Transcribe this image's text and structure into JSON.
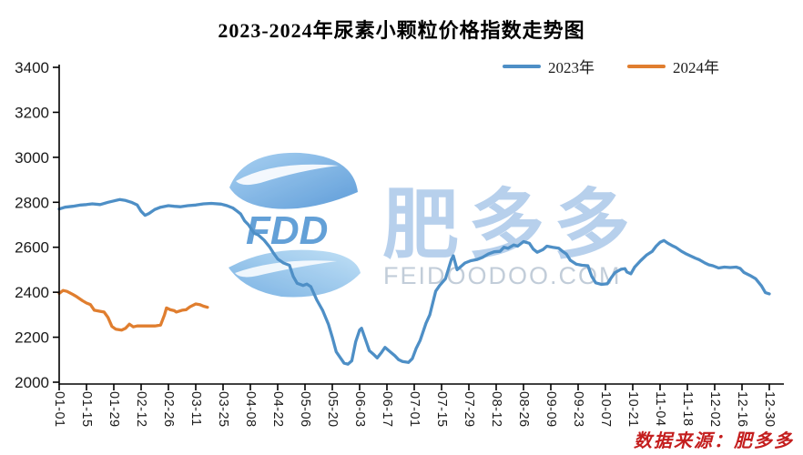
{
  "title": "2023-2024年尿素小颗粒价格指数走势图",
  "legend": [
    {
      "label": "2023年",
      "color": "#4e8fc6"
    },
    {
      "label": "2024年",
      "color": "#e07e2f"
    }
  ],
  "source_note": "数据来源：肥多多",
  "watermark": {
    "logo_text": "FDD",
    "brand_text": "肥多多",
    "domain_text": "FEIDOODOO.COM",
    "leaf_color_light": "#9dcbf0",
    "leaf_color_dark": "#4a90d4",
    "logo_text_color": "#5b9bd5",
    "brand_text_color": "#abc8e9",
    "domain_text_color": "#c2cdd9"
  },
  "colors": {
    "axis": "#000000",
    "tick_label": "#1a1a1a",
    "background": "#ffffff",
    "series_2023": "#4e8fc6",
    "series_2024": "#e07e2f",
    "source_note": "#c41e1e"
  },
  "chart_data": {
    "type": "line",
    "title": "2023-2024年尿素小颗粒价格指数走势图",
    "xlabel": "",
    "ylabel": "",
    "grid": false,
    "legend_position": "top-right",
    "ylim": [
      2000,
      3400
    ],
    "y_ticks": [
      2000,
      2200,
      2400,
      2600,
      2800,
      3000,
      3200,
      3400
    ],
    "x_tick_labels": [
      "01-01",
      "01-15",
      "01-29",
      "02-12",
      "02-26",
      "03-11",
      "03-25",
      "04-08",
      "04-22",
      "05-06",
      "05-20",
      "06-03",
      "06-17",
      "07-01",
      "07-15",
      "07-29",
      "08-12",
      "08-26",
      "09-09",
      "09-23",
      "10-07",
      "10-21",
      "11-04",
      "11-18",
      "12-02",
      "12-16",
      "12-30"
    ],
    "series": [
      {
        "name": "2023年",
        "color": "#4e8fc6",
        "points": [
          [
            "01-01",
            2770
          ],
          [
            "01-04",
            2778
          ],
          [
            "01-08",
            2782
          ],
          [
            "01-12",
            2788
          ],
          [
            "01-15",
            2790
          ],
          [
            "01-18",
            2793
          ],
          [
            "01-22",
            2790
          ],
          [
            "01-26",
            2800
          ],
          [
            "01-29",
            2806
          ],
          [
            "02-01",
            2812
          ],
          [
            "02-04",
            2808
          ],
          [
            "02-07",
            2800
          ],
          [
            "02-10",
            2788
          ],
          [
            "02-12",
            2760
          ],
          [
            "02-14",
            2742
          ],
          [
            "02-16",
            2750
          ],
          [
            "02-19",
            2768
          ],
          [
            "02-22",
            2778
          ],
          [
            "02-26",
            2785
          ],
          [
            "03-01",
            2782
          ],
          [
            "03-04",
            2780
          ],
          [
            "03-08",
            2785
          ],
          [
            "03-12",
            2788
          ],
          [
            "03-16",
            2793
          ],
          [
            "03-20",
            2795
          ],
          [
            "03-25",
            2792
          ],
          [
            "03-28",
            2785
          ],
          [
            "03-31",
            2775
          ],
          [
            "04-02",
            2762
          ],
          [
            "04-04",
            2748
          ],
          [
            "04-06",
            2718
          ],
          [
            "04-08",
            2700
          ],
          [
            "04-11",
            2662
          ],
          [
            "04-13",
            2655
          ],
          [
            "04-16",
            2632
          ],
          [
            "04-19",
            2600
          ],
          [
            "04-21",
            2572
          ],
          [
            "04-23",
            2548
          ],
          [
            "04-26",
            2530
          ],
          [
            "04-29",
            2520
          ],
          [
            "05-01",
            2470
          ],
          [
            "05-03",
            2440
          ],
          [
            "05-06",
            2430
          ],
          [
            "05-08",
            2436
          ],
          [
            "05-10",
            2425
          ],
          [
            "05-13",
            2366
          ],
          [
            "05-16",
            2320
          ],
          [
            "05-19",
            2258
          ],
          [
            "05-21",
            2200
          ],
          [
            "05-23",
            2135
          ],
          [
            "05-25",
            2110
          ],
          [
            "05-27",
            2085
          ],
          [
            "05-29",
            2080
          ],
          [
            "05-31",
            2095
          ],
          [
            "06-02",
            2180
          ],
          [
            "06-04",
            2232
          ],
          [
            "06-05",
            2240
          ],
          [
            "06-07",
            2190
          ],
          [
            "06-09",
            2140
          ],
          [
            "06-11",
            2125
          ],
          [
            "06-13",
            2108
          ],
          [
            "06-15",
            2130
          ],
          [
            "06-17",
            2155
          ],
          [
            "06-19",
            2140
          ],
          [
            "06-22",
            2118
          ],
          [
            "06-24",
            2100
          ],
          [
            "06-26",
            2092
          ],
          [
            "06-29",
            2088
          ],
          [
            "07-01",
            2105
          ],
          [
            "07-03",
            2150
          ],
          [
            "07-05",
            2185
          ],
          [
            "07-08",
            2262
          ],
          [
            "07-10",
            2300
          ],
          [
            "07-13",
            2405
          ],
          [
            "07-15",
            2430
          ],
          [
            "07-18",
            2460
          ],
          [
            "07-21",
            2545
          ],
          [
            "07-22",
            2562
          ],
          [
            "07-24",
            2500
          ],
          [
            "07-26",
            2515
          ],
          [
            "07-28",
            2530
          ],
          [
            "07-31",
            2540
          ],
          [
            "08-03",
            2545
          ],
          [
            "08-06",
            2555
          ],
          [
            "08-09",
            2570
          ],
          [
            "08-12",
            2580
          ],
          [
            "08-15",
            2582
          ],
          [
            "08-17",
            2600
          ],
          [
            "08-19",
            2595
          ],
          [
            "08-22",
            2610
          ],
          [
            "08-24",
            2605
          ],
          [
            "08-27",
            2625
          ],
          [
            "08-30",
            2618
          ],
          [
            "09-01",
            2592
          ],
          [
            "09-03",
            2578
          ],
          [
            "09-06",
            2590
          ],
          [
            "09-08",
            2605
          ],
          [
            "09-11",
            2600
          ],
          [
            "09-14",
            2596
          ],
          [
            "09-16",
            2582
          ],
          [
            "09-18",
            2570
          ],
          [
            "09-20",
            2542
          ],
          [
            "09-23",
            2525
          ],
          [
            "09-26",
            2520
          ],
          [
            "09-29",
            2518
          ],
          [
            "10-01",
            2470
          ],
          [
            "10-03",
            2442
          ],
          [
            "10-06",
            2435
          ],
          [
            "10-09",
            2438
          ],
          [
            "10-11",
            2465
          ],
          [
            "10-13",
            2488
          ],
          [
            "10-16",
            2502
          ],
          [
            "10-18",
            2505
          ],
          [
            "10-19",
            2490
          ],
          [
            "10-21",
            2482
          ],
          [
            "10-23",
            2512
          ],
          [
            "10-26",
            2540
          ],
          [
            "10-29",
            2565
          ],
          [
            "11-01",
            2582
          ],
          [
            "11-03",
            2605
          ],
          [
            "11-05",
            2622
          ],
          [
            "11-07",
            2630
          ],
          [
            "11-09",
            2618
          ],
          [
            "11-11",
            2608
          ],
          [
            "11-13",
            2600
          ],
          [
            "11-16",
            2582
          ],
          [
            "11-18",
            2572
          ],
          [
            "11-21",
            2560
          ],
          [
            "11-23",
            2552
          ],
          [
            "11-25",
            2545
          ],
          [
            "11-28",
            2530
          ],
          [
            "11-30",
            2522
          ],
          [
            "12-02",
            2518
          ],
          [
            "12-05",
            2508
          ],
          [
            "12-08",
            2512
          ],
          [
            "12-11",
            2510
          ],
          [
            "12-14",
            2512
          ],
          [
            "12-16",
            2506
          ],
          [
            "12-18",
            2488
          ],
          [
            "12-21",
            2475
          ],
          [
            "12-24",
            2460
          ],
          [
            "12-27",
            2428
          ],
          [
            "12-29",
            2398
          ],
          [
            "12-31",
            2393
          ]
        ]
      },
      {
        "name": "2024年",
        "color": "#e07e2f",
        "points": [
          [
            "01-01",
            2395
          ],
          [
            "01-03",
            2408
          ],
          [
            "01-05",
            2404
          ],
          [
            "01-08",
            2390
          ],
          [
            "01-10",
            2380
          ],
          [
            "01-13",
            2362
          ],
          [
            "01-15",
            2352
          ],
          [
            "01-17",
            2345
          ],
          [
            "01-19",
            2320
          ],
          [
            "01-22",
            2315
          ],
          [
            "01-24",
            2312
          ],
          [
            "01-26",
            2288
          ],
          [
            "01-28",
            2248
          ],
          [
            "01-30",
            2236
          ],
          [
            "02-02",
            2232
          ],
          [
            "02-04",
            2240
          ],
          [
            "02-06",
            2258
          ],
          [
            "02-08",
            2246
          ],
          [
            "02-10",
            2250
          ],
          [
            "02-13",
            2250
          ],
          [
            "02-16",
            2250
          ],
          [
            "02-19",
            2250
          ],
          [
            "02-22",
            2254
          ],
          [
            "02-24",
            2300
          ],
          [
            "02-25",
            2330
          ],
          [
            "02-27",
            2322
          ],
          [
            "02-29",
            2318
          ],
          [
            "03-02",
            2312
          ],
          [
            "03-05",
            2320
          ],
          [
            "03-07",
            2322
          ],
          [
            "03-09",
            2335
          ],
          [
            "03-12",
            2348
          ],
          [
            "03-14",
            2345
          ],
          [
            "03-16",
            2338
          ],
          [
            "03-18",
            2333
          ]
        ]
      }
    ]
  }
}
